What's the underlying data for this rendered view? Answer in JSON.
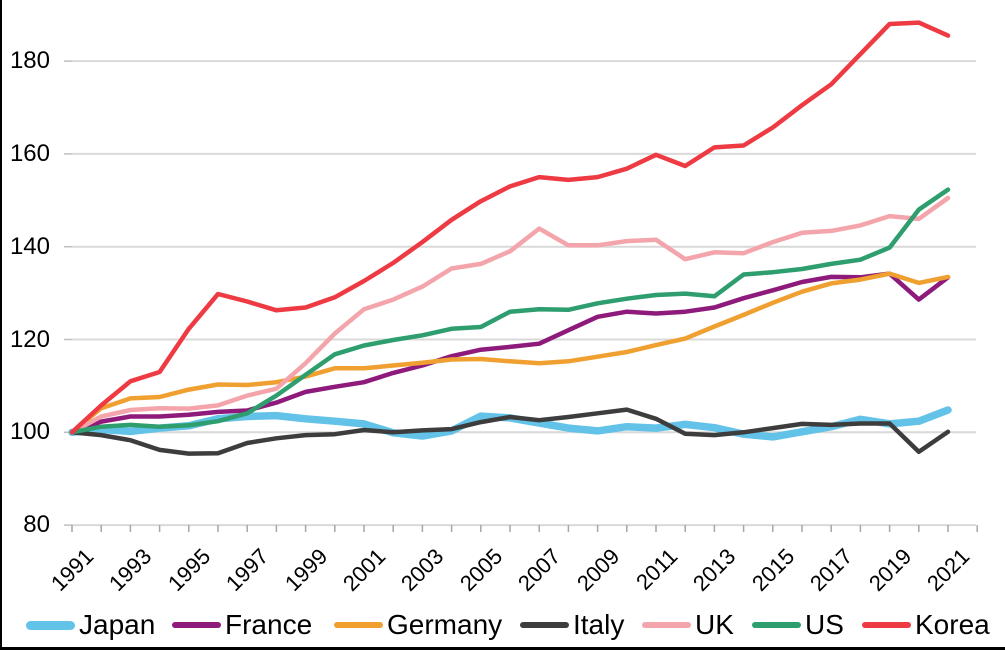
{
  "chart_data": {
    "type": "line",
    "title": "",
    "x": [
      1991,
      1992,
      1993,
      1994,
      1995,
      1996,
      1997,
      1998,
      1999,
      2000,
      2001,
      2002,
      2003,
      2004,
      2005,
      2006,
      2007,
      2008,
      2009,
      2010,
      2011,
      2012,
      2013,
      2014,
      2015,
      2016,
      2017,
      2018,
      2019,
      2020,
      2021
    ],
    "x_tick_labels": [
      "1991",
      "1993",
      "1995",
      "1997",
      "1999",
      "2001",
      "2003",
      "2005",
      "2007",
      "2009",
      "2011",
      "2013",
      "2015",
      "2017",
      "2019",
      "2021"
    ],
    "y_ticks": [
      80,
      100,
      120,
      140,
      160,
      180
    ],
    "ylim": [
      80,
      190
    ],
    "grid": true,
    "legend_position": "bottom",
    "series": [
      {
        "name": "Japan",
        "color": "#62C2E8",
        "line_width": 7.5,
        "values": [
          100,
          100.6,
          100.2,
          100.9,
          101.4,
          102.9,
          103.4,
          103.6,
          102.9,
          102.4,
          101.8,
          99.9,
          99.2,
          100.3,
          103.5,
          103.1,
          102.0,
          100.9,
          100.3,
          101.2,
          100.9,
          101.7,
          101.0,
          99.6,
          99.0,
          100.1,
          101.2,
          102.8,
          101.8,
          102.4,
          104.8
        ]
      },
      {
        "name": "France",
        "color": "#8E1B7B",
        "line_width": 4.5,
        "values": [
          100,
          102.3,
          103.4,
          103.4,
          103.8,
          104.4,
          104.7,
          106.4,
          108.7,
          109.8,
          110.8,
          112.8,
          114.4,
          116.4,
          117.8,
          118.4,
          119.1,
          122.0,
          124.9,
          126.0,
          125.6,
          126.0,
          126.9,
          128.9,
          130.6,
          132.4,
          133.5,
          133.4,
          134.2,
          128.6,
          133.4
        ]
      },
      {
        "name": "Germany",
        "color": "#F0A030",
        "line_width": 4.5,
        "values": [
          100,
          105.2,
          107.3,
          107.6,
          109.2,
          110.3,
          110.2,
          110.8,
          112.0,
          113.8,
          113.8,
          114.4,
          115.0,
          115.7,
          115.8,
          115.3,
          114.9,
          115.3,
          116.3,
          117.3,
          118.8,
          120.2,
          122.8,
          125.3,
          127.9,
          130.3,
          132.1,
          132.9,
          134.2,
          132.2,
          133.5
        ]
      },
      {
        "name": "Italy",
        "color": "#3D3D3D",
        "line_width": 4.5,
        "values": [
          100,
          99.4,
          98.3,
          96.2,
          95.4,
          95.5,
          97.7,
          98.7,
          99.4,
          99.6,
          100.5,
          100.0,
          100.4,
          100.7,
          102.2,
          103.3,
          102.6,
          103.3,
          104.1,
          104.9,
          102.9,
          99.7,
          99.4,
          100.0,
          100.9,
          101.8,
          101.6,
          101.9,
          101.9,
          95.8,
          100.1
        ]
      },
      {
        "name": "UK",
        "color": "#F3A5AB",
        "line_width": 4.5,
        "values": [
          100,
          103.4,
          104.8,
          105.2,
          105.1,
          105.8,
          107.9,
          109.4,
          114.9,
          121.3,
          126.5,
          128.6,
          131.4,
          135.3,
          136.3,
          139.0,
          143.9,
          140.3,
          140.3,
          141.2,
          141.5,
          137.3,
          138.8,
          138.6,
          141.0,
          143.0,
          143.4,
          144.6,
          146.6,
          146.0,
          150.5
        ]
      },
      {
        "name": "US",
        "color": "#2E9E6F",
        "line_width": 4.5,
        "values": [
          100,
          101.2,
          101.6,
          101.2,
          101.5,
          102.4,
          104.1,
          107.9,
          112.4,
          116.8,
          118.7,
          119.9,
          120.9,
          122.3,
          122.7,
          126.0,
          126.5,
          126.4,
          127.8,
          128.8,
          129.6,
          129.9,
          129.3,
          134.0,
          134.5,
          135.2,
          136.3,
          137.2,
          139.8,
          148.0,
          152.3
        ]
      },
      {
        "name": "Korea",
        "color": "#EE3B43",
        "line_width": 4.5,
        "values": [
          100,
          105.8,
          111.0,
          113.0,
          122.3,
          129.8,
          128.2,
          126.3,
          126.9,
          129.1,
          132.6,
          136.5,
          141.0,
          145.8,
          149.8,
          153.0,
          155.0,
          154.4,
          155.0,
          156.8,
          159.8,
          157.4,
          161.4,
          161.8,
          165.7,
          170.5,
          175.0,
          181.5,
          188.0,
          188.3,
          185.5
        ]
      }
    ],
    "axis_colors": {
      "grid": "#D9D9D9",
      "tick": "#A6A6A6",
      "stub": "#BFBFBF",
      "label": "#000000"
    }
  }
}
